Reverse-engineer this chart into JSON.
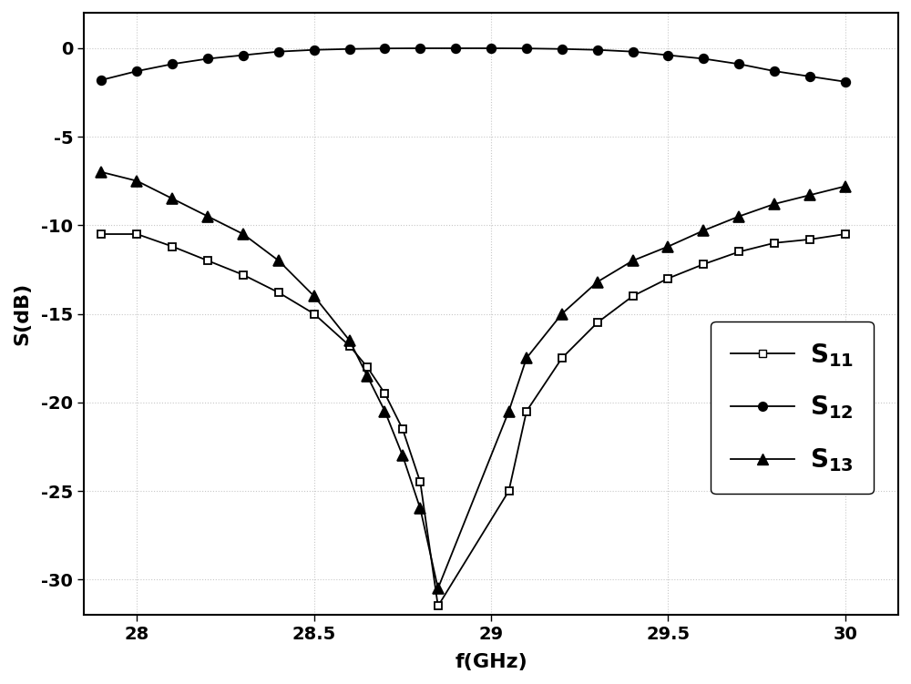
{
  "title": "",
  "xlabel": "f(GHz)",
  "ylabel": "S(dB)",
  "xlim": [
    27.85,
    30.15
  ],
  "ylim": [
    -32,
    2
  ],
  "xticks": [
    28.0,
    28.5,
    29.0,
    29.5,
    30.0
  ],
  "yticks": [
    0,
    -5,
    -10,
    -15,
    -20,
    -25,
    -30
  ],
  "S11_x": [
    27.9,
    28.0,
    28.1,
    28.2,
    28.3,
    28.4,
    28.5,
    28.6,
    28.65,
    28.7,
    28.75,
    28.8,
    28.85,
    29.05,
    29.1,
    29.2,
    29.3,
    29.4,
    29.5,
    29.6,
    29.7,
    29.8,
    29.9,
    30.0
  ],
  "S11_y": [
    -10.5,
    -10.5,
    -11.2,
    -12.0,
    -12.8,
    -13.8,
    -15.0,
    -16.8,
    -18.0,
    -19.5,
    -21.5,
    -24.5,
    -31.5,
    -25.0,
    -20.5,
    -17.5,
    -15.5,
    -14.0,
    -13.0,
    -12.2,
    -11.5,
    -11.0,
    -10.8,
    -10.5
  ],
  "S12_x": [
    27.9,
    28.0,
    28.1,
    28.2,
    28.3,
    28.4,
    28.5,
    28.6,
    28.7,
    28.8,
    28.9,
    29.0,
    29.1,
    29.2,
    29.3,
    29.4,
    29.5,
    29.6,
    29.7,
    29.8,
    29.9,
    30.0
  ],
  "S12_y": [
    -1.8,
    -1.3,
    -0.9,
    -0.6,
    -0.4,
    -0.2,
    -0.1,
    -0.05,
    -0.02,
    -0.01,
    -0.01,
    -0.01,
    -0.02,
    -0.05,
    -0.1,
    -0.2,
    -0.4,
    -0.6,
    -0.9,
    -1.3,
    -1.6,
    -1.9
  ],
  "S13_x": [
    27.9,
    28.0,
    28.1,
    28.2,
    28.3,
    28.4,
    28.5,
    28.6,
    28.65,
    28.7,
    28.75,
    28.8,
    28.85,
    29.05,
    29.1,
    29.2,
    29.3,
    29.4,
    29.5,
    29.6,
    29.7,
    29.8,
    29.9,
    30.0
  ],
  "S13_y": [
    -7.0,
    -7.5,
    -8.5,
    -9.5,
    -10.5,
    -12.0,
    -14.0,
    -16.5,
    -18.5,
    -20.5,
    -23.0,
    -26.0,
    -30.5,
    -20.5,
    -17.5,
    -15.0,
    -13.2,
    -12.0,
    -11.2,
    -10.3,
    -9.5,
    -8.8,
    -8.3,
    -7.8
  ],
  "line_color": "#000000",
  "marker_size_square": 6,
  "marker_size_circle": 7,
  "marker_size_triangle": 8,
  "linewidth": 1.3,
  "legend_fontsize": 20,
  "axis_label_fontsize": 16,
  "tick_fontsize": 14,
  "background_color": "#ffffff",
  "grid_color": "#c8c8c8"
}
